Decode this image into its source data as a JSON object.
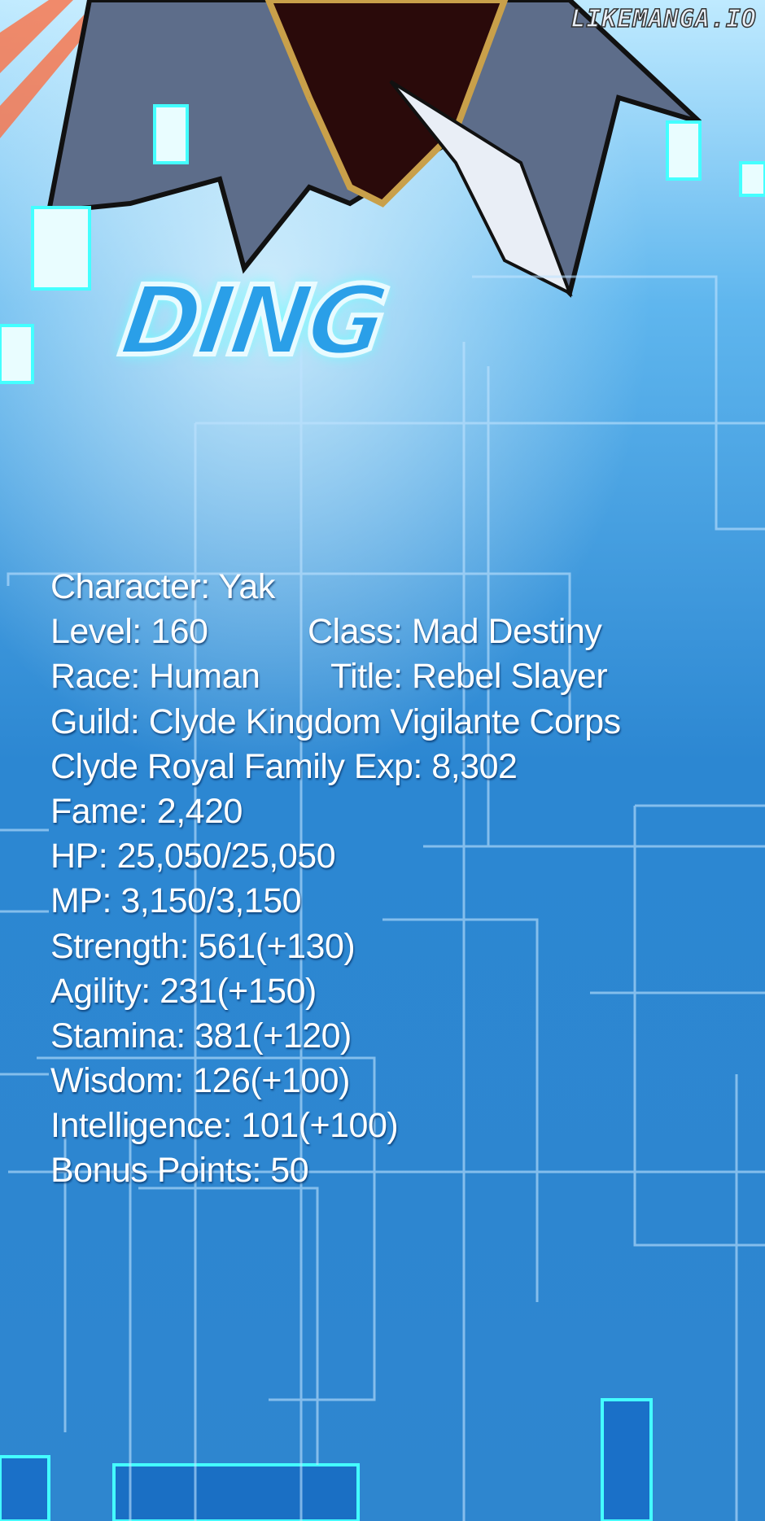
{
  "watermark": "LIKEMANGA.IO",
  "sfx": "DING",
  "colors": {
    "background": "#2a86d0",
    "grid_lines": "#bfe3ff",
    "glow": "#66ffff",
    "text": "#ffffff"
  },
  "stats": {
    "character": "Character: Yak",
    "level": "Level: 160",
    "class": "Class: Mad Destiny",
    "race": "Race: Human",
    "title": "Title: Rebel Slayer",
    "guild": "Guild: Clyde Kingdom Vigilante Corps",
    "royal_exp": "Clyde Royal Family Exp: 8,302",
    "fame": "Fame: 2,420",
    "hp": "HP: 25,050/25,050",
    "mp": "MP: 3,150/3,150",
    "strength": "Strength: 561(+130)",
    "agility": "Agility: 231(+150)",
    "stamina": "Stamina: 381(+120)",
    "wisdom": "Wisdom: 126(+100)",
    "intelligence": "Intelligence: 101(+100)",
    "bonus_points": "Bonus Points: 50"
  }
}
